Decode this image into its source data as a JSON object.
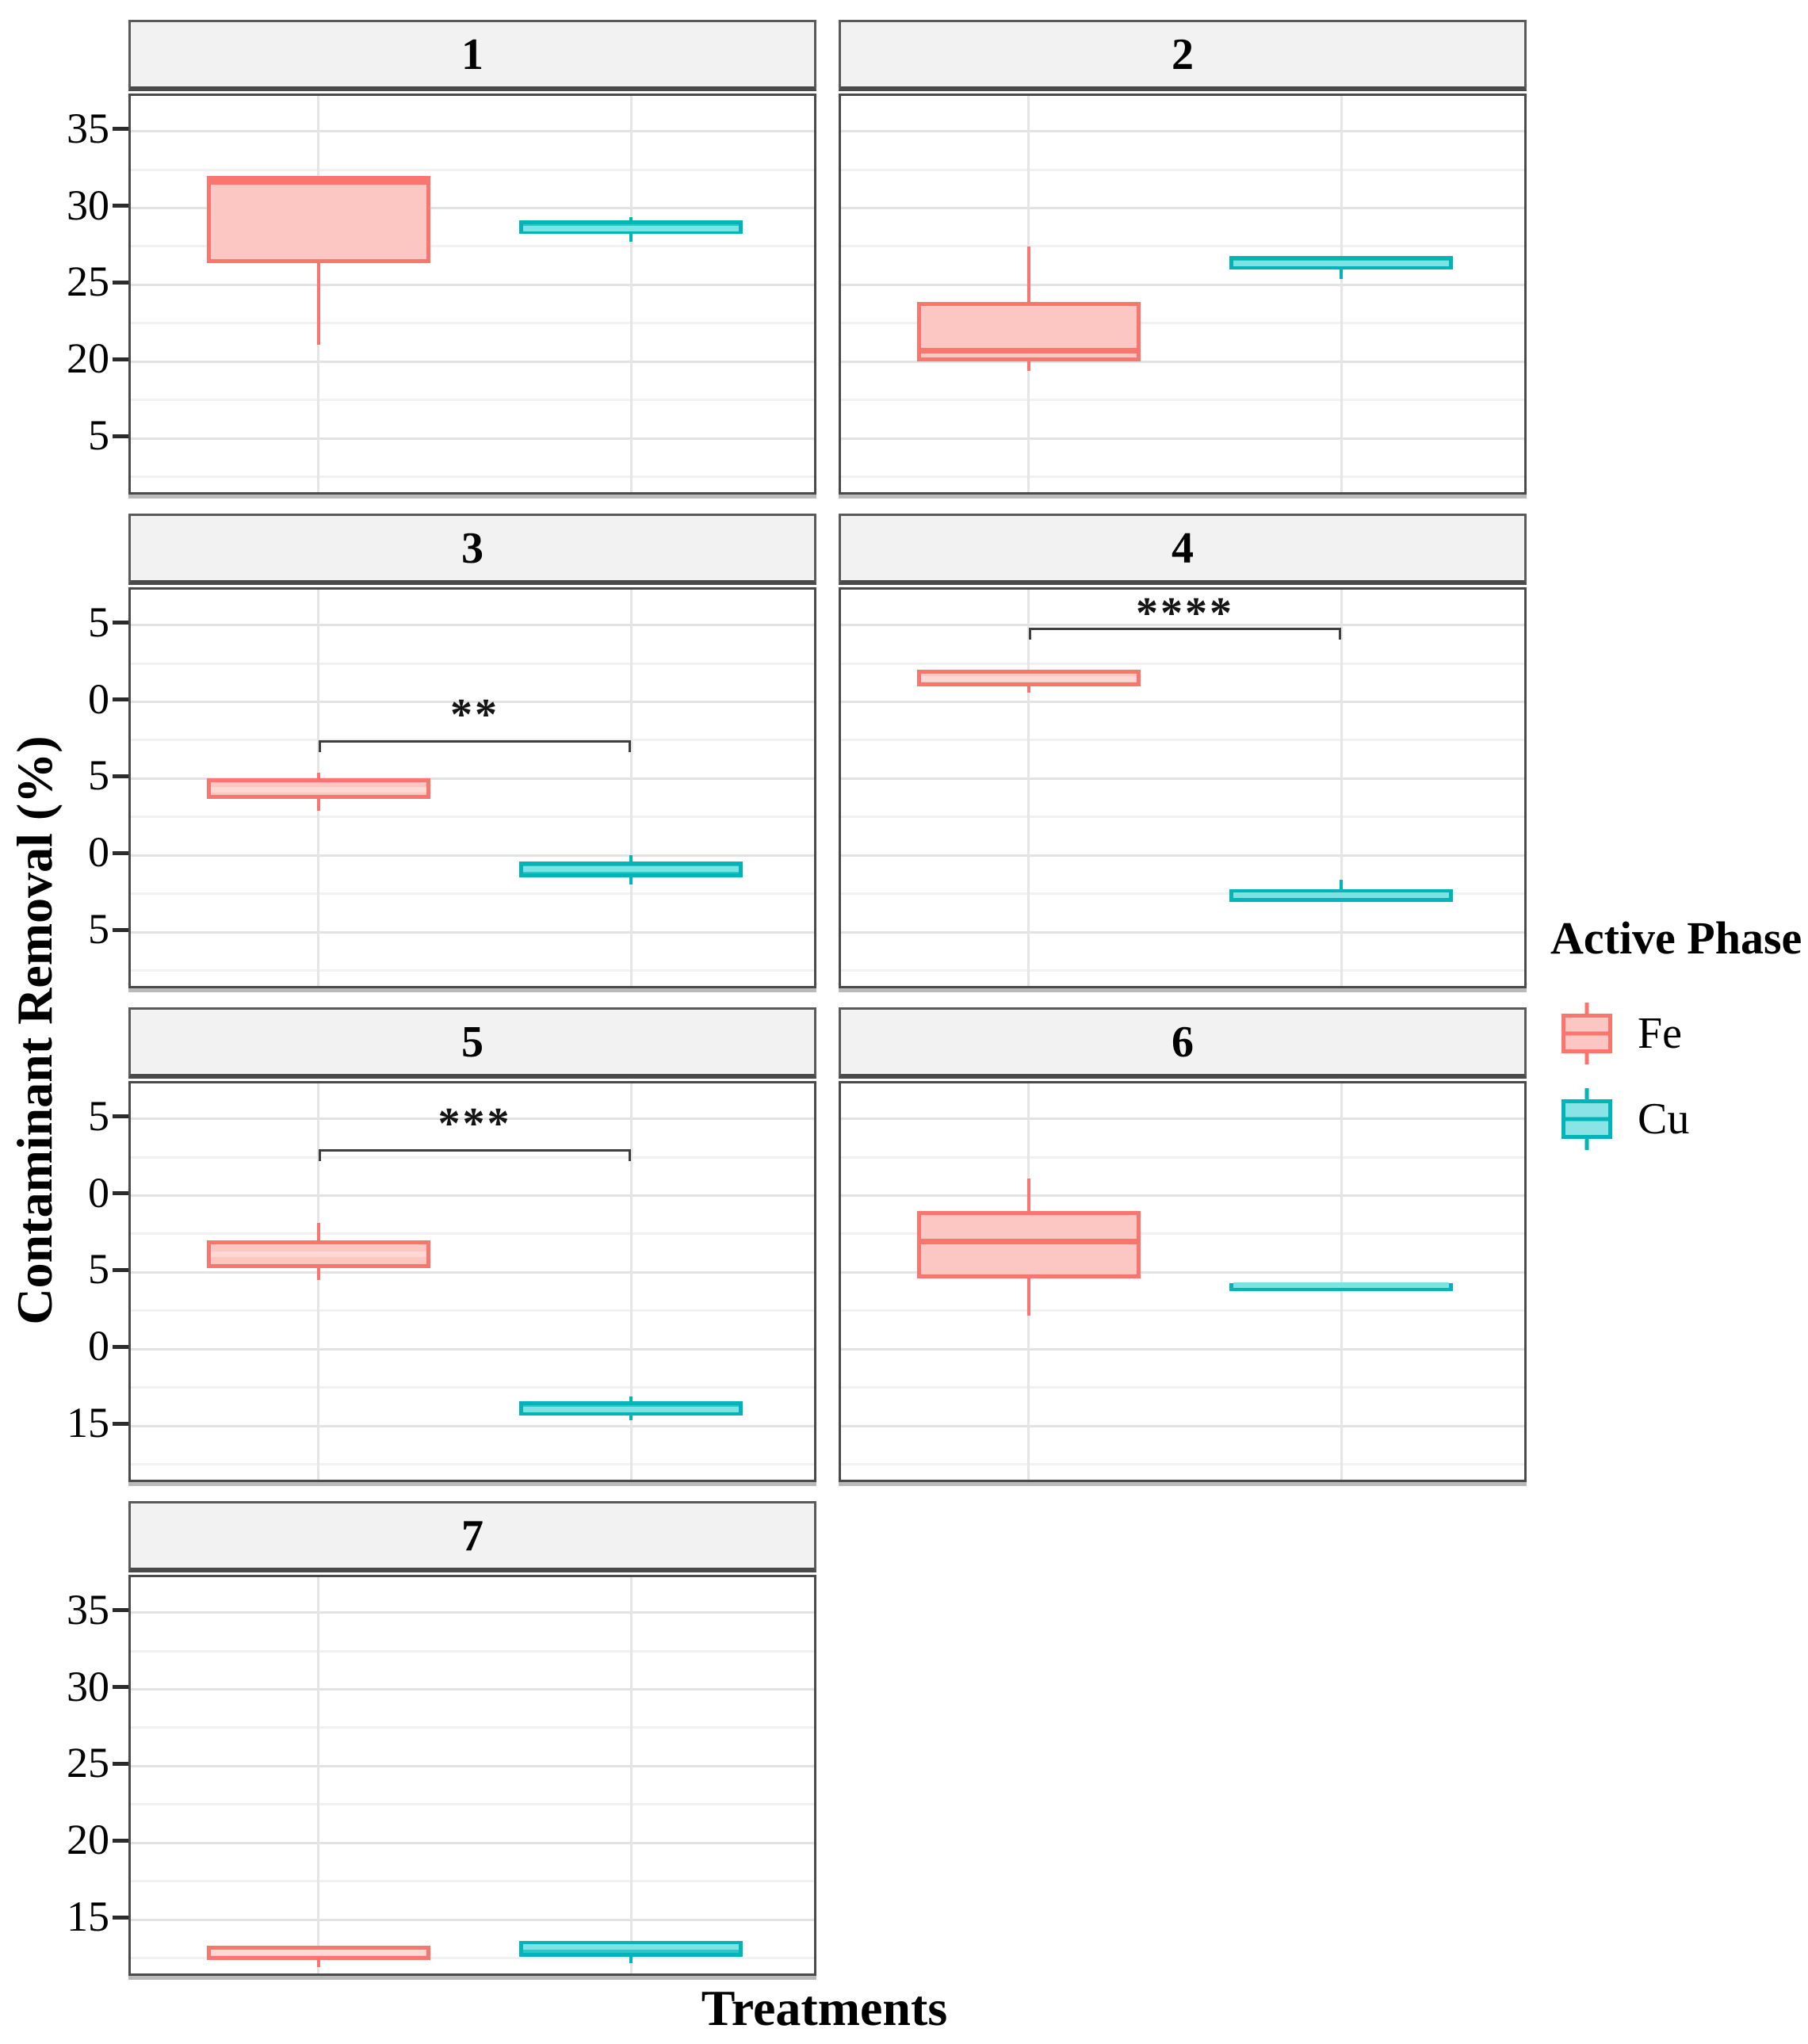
{
  "colors": {
    "fe_stroke": "#f8766d",
    "fe_fill": "#fcc6c2",
    "fe_median_light": "#ffd8d4",
    "cu_stroke": "#00b4b8",
    "cu_fill": "#2cc5c9",
    "cu_median_light": "#7ce2e4",
    "bracket": "#3f3f3f",
    "strip_bg": "#f2f2f2",
    "panel_border": "#4a4a4a"
  },
  "chart_data": {
    "type": "boxplot",
    "title": "",
    "xlabel": "Treatments",
    "ylabel": "Contaminant Removal (%)",
    "x_categories": [
      "Fe",
      "Cu"
    ],
    "legend": {
      "title": "Active Phase",
      "position": "right",
      "items": [
        {
          "label": "Fe"
        },
        {
          "label": "Cu"
        }
      ]
    },
    "y_axis": {
      "tick_values": [
        35,
        30,
        25,
        20,
        15
      ],
      "minor_interval": 2.5,
      "ylim": [
        11.2,
        37.3
      ],
      "row_tick_labels": [
        [
          "35",
          "30",
          "25",
          "20",
          "5"
        ],
        [
          "5",
          "0",
          "5",
          "0",
          "5"
        ],
        [
          "5",
          "0",
          "5",
          "0",
          "15"
        ],
        [
          "35",
          "30",
          "25",
          "20",
          "15"
        ]
      ]
    },
    "grid": true,
    "facets": [
      {
        "label": "1",
        "row": 0,
        "col": 0,
        "significance": null,
        "boxes": [
          {
            "group": "Fe",
            "whisker_low": 21.1,
            "q1": 26.4,
            "median": 31.8,
            "q3": 32.1,
            "whisker_high": 32.1,
            "median_shade": "dark"
          },
          {
            "group": "Cu",
            "whisker_low": 27.8,
            "q1": 28.3,
            "median": 28.6,
            "q3": 29.2,
            "whisker_high": 29.4,
            "median_shade": "light"
          }
        ]
      },
      {
        "label": "2",
        "row": 0,
        "col": 1,
        "significance": null,
        "boxes": [
          {
            "group": "Fe",
            "whisker_low": 19.4,
            "q1": 20.0,
            "median": 20.7,
            "q3": 23.9,
            "whisker_high": 27.5,
            "median_shade": "dark"
          },
          {
            "group": "Cu",
            "whisker_low": 25.4,
            "q1": 26.0,
            "median": 26.4,
            "q3": 26.9,
            "whisker_high": 26.9,
            "median_shade": "light"
          }
        ]
      },
      {
        "label": "3",
        "row": 1,
        "col": 0,
        "significance": {
          "stars": "**",
          "y": 27.5
        },
        "boxes": [
          {
            "group": "Fe",
            "whisker_low": 22.9,
            "q1": 23.7,
            "median": 24.3,
            "q3": 25.0,
            "whisker_high": 25.4,
            "median_shade": "light"
          },
          {
            "group": "Cu",
            "whisker_low": 18.1,
            "q1": 18.6,
            "median": 19.1,
            "q3": 19.6,
            "whisker_high": 20.0,
            "median_shade": "light"
          }
        ]
      },
      {
        "label": "4",
        "row": 1,
        "col": 1,
        "significance": {
          "stars": "****",
          "y": 34.8
        },
        "boxes": [
          {
            "group": "Fe",
            "whisker_low": 30.6,
            "q1": 31.0,
            "median": 31.5,
            "q3": 32.1,
            "whisker_high": 32.1,
            "median_shade": "light"
          },
          {
            "group": "Cu",
            "whisker_low": 16.9,
            "q1": 17.0,
            "median": 17.4,
            "q3": 17.8,
            "whisker_high": 18.4,
            "median_shade": "light"
          }
        ]
      },
      {
        "label": "5",
        "row": 2,
        "col": 0,
        "significance": {
          "stars": "***",
          "y": 33.0
        },
        "boxes": [
          {
            "group": "Fe",
            "whisker_low": 24.5,
            "q1": 25.3,
            "median": 26.2,
            "q3": 27.1,
            "whisker_high": 28.2,
            "median_shade": "light"
          },
          {
            "group": "Cu",
            "whisker_low": 15.4,
            "q1": 15.7,
            "median": 16.1,
            "q3": 16.6,
            "whisker_high": 16.9,
            "median_shade": "light"
          }
        ]
      },
      {
        "label": "6",
        "row": 2,
        "col": 1,
        "significance": null,
        "boxes": [
          {
            "group": "Fe",
            "whisker_low": 22.2,
            "q1": 24.6,
            "median": 27.0,
            "q3": 29.0,
            "whisker_high": 31.1,
            "median_shade": "dark"
          },
          {
            "group": "Cu",
            "whisker_low": 23.8,
            "q1": 23.9,
            "median": 24.05,
            "q3": 24.3,
            "whisker_high": 24.3,
            "median_shade": "light"
          }
        ]
      },
      {
        "label": "7",
        "row": 3,
        "col": 0,
        "significance": null,
        "boxes": [
          {
            "group": "Fe",
            "whisker_low": 11.9,
            "q1": 12.4,
            "median": 12.9,
            "q3": 13.3,
            "whisker_high": 13.3,
            "median_shade": "light"
          },
          {
            "group": "Cu",
            "whisker_low": 12.2,
            "q1": 12.6,
            "median": 13.3,
            "q3": 13.6,
            "whisker_high": 13.6,
            "median_shade": "light"
          }
        ]
      }
    ]
  }
}
